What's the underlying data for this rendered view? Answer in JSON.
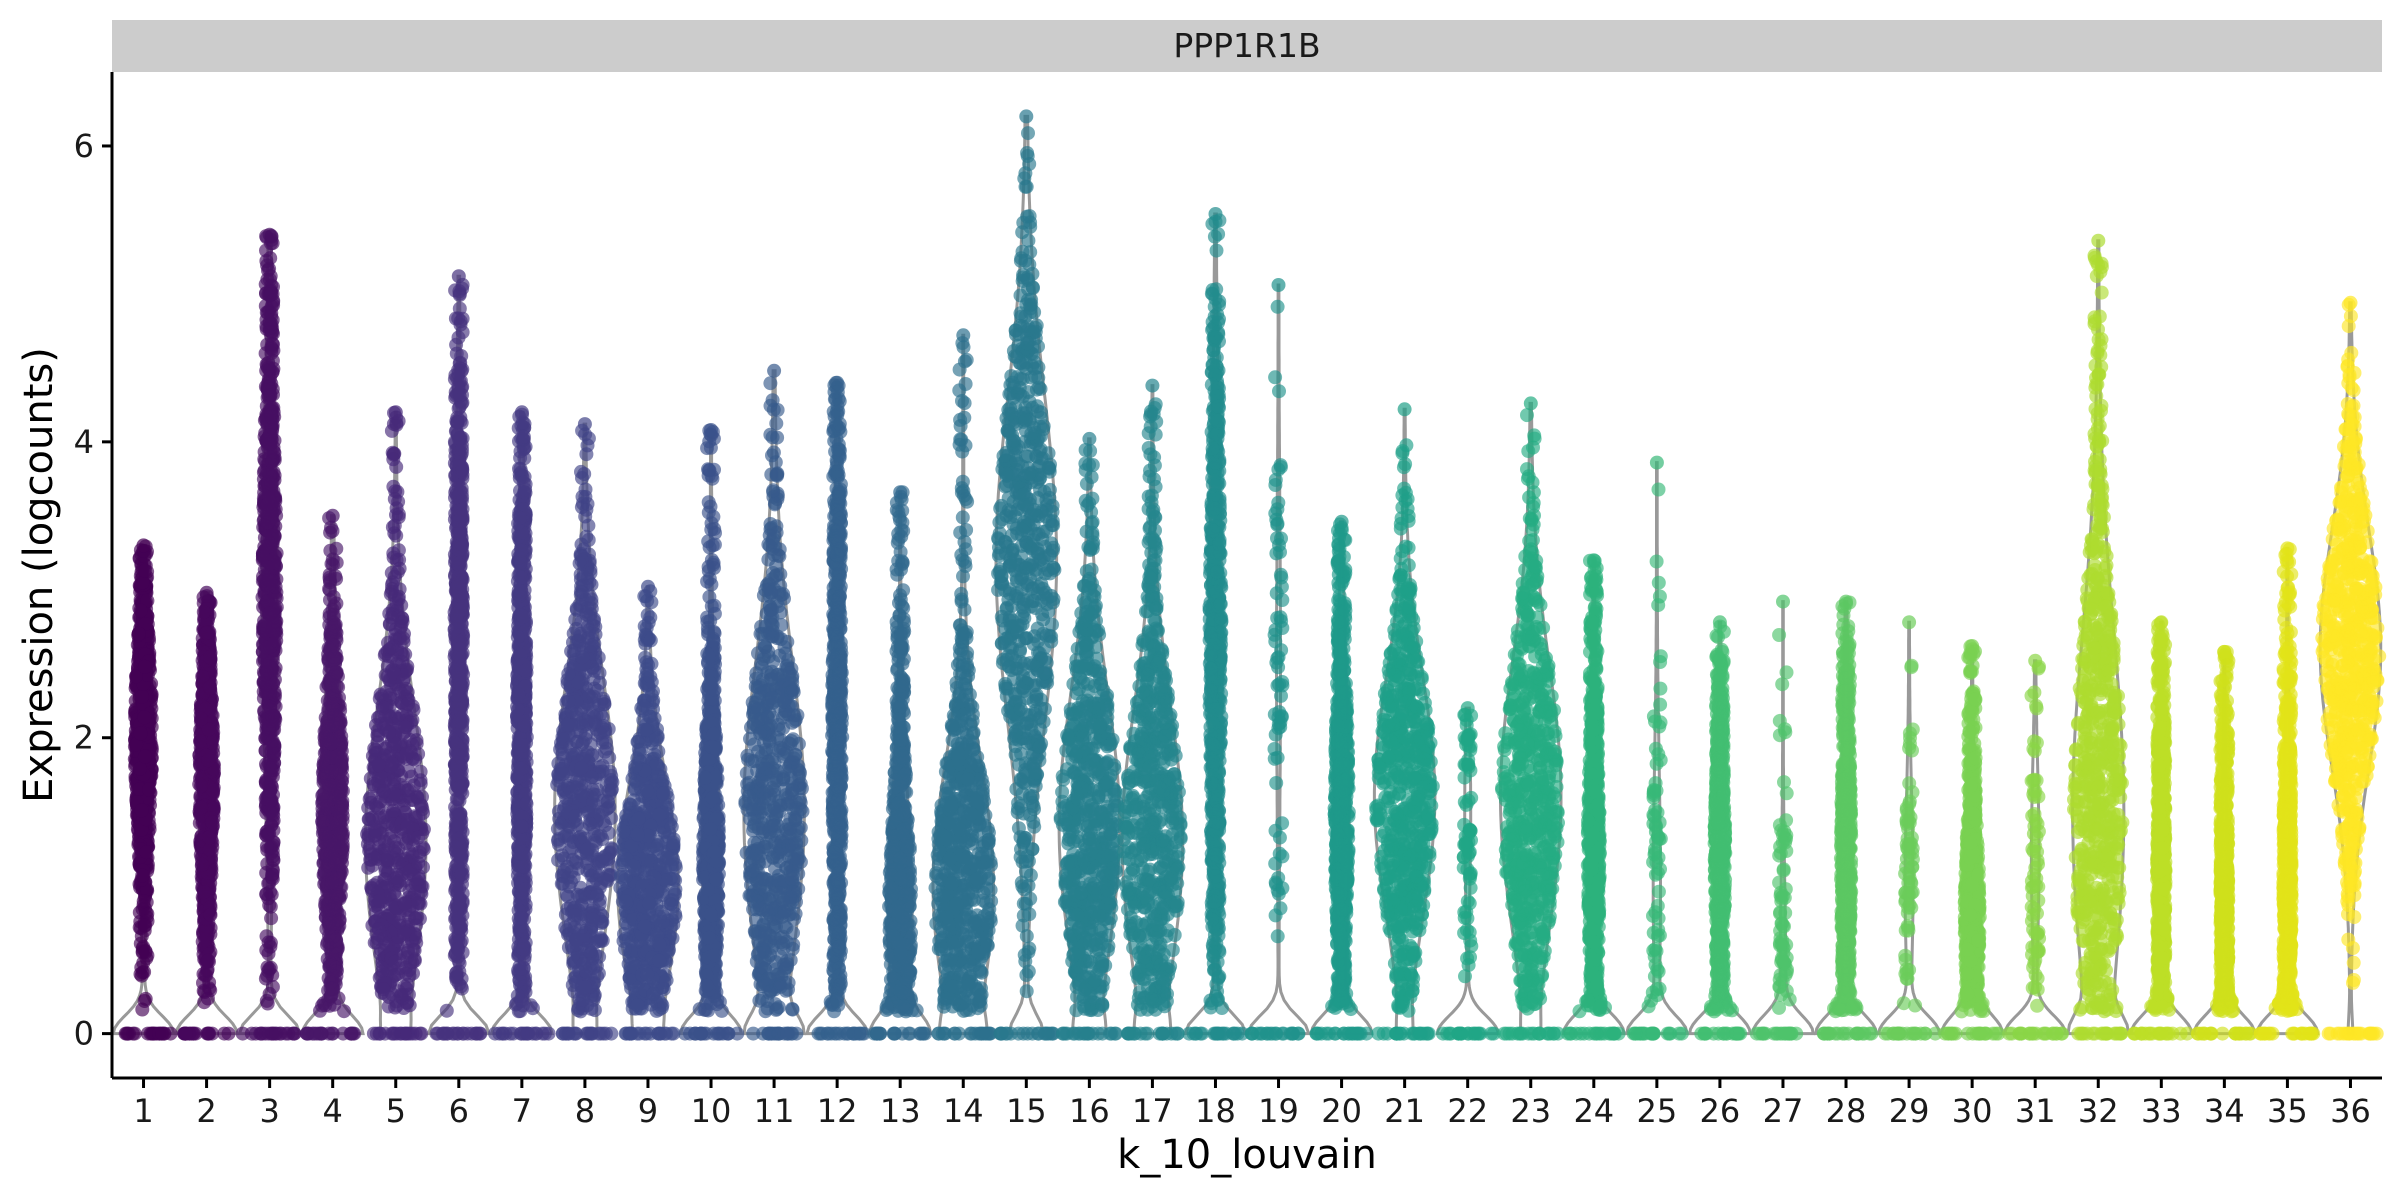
{
  "chart_data": {
    "type": "violin",
    "facet_title": "PPP1R1B",
    "xlabel": "k_10_louvain",
    "ylabel": "Expression (logcounts)",
    "ylim": [
      -0.3,
      6.5
    ],
    "yticks": [
      0,
      2,
      4,
      6
    ],
    "categories": [
      "1",
      "2",
      "3",
      "4",
      "5",
      "6",
      "7",
      "8",
      "9",
      "10",
      "11",
      "12",
      "13",
      "14",
      "15",
      "16",
      "17",
      "18",
      "19",
      "20",
      "21",
      "22",
      "23",
      "24",
      "25",
      "26",
      "27",
      "28",
      "29",
      "30",
      "31",
      "32",
      "33",
      "34",
      "35",
      "36"
    ],
    "series": [
      {
        "category": "1",
        "color": "#440154",
        "max": 3.3,
        "zero_weight": 0.6,
        "mode": 2.0,
        "spread": 0.7,
        "body_width": 0.18,
        "dense": true
      },
      {
        "category": "2",
        "color": "#46085c",
        "max": 2.98,
        "zero_weight": 0.6,
        "mode": 1.7,
        "spread": 0.7,
        "body_width": 0.15,
        "dense": true
      },
      {
        "category": "3",
        "color": "#471063",
        "max": 5.4,
        "zero_weight": 0.5,
        "mode": 3.0,
        "spread": 1.2,
        "body_width": 0.12,
        "dense": true
      },
      {
        "category": "4",
        "color": "#481769",
        "max": 3.5,
        "zero_weight": 0.4,
        "mode": 1.5,
        "spread": 0.8,
        "body_width": 0.15,
        "dense": true
      },
      {
        "category": "5",
        "color": "#472a7a",
        "max": 4.2,
        "zero_weight": 0.1,
        "mode": 1.3,
        "spread": 0.9,
        "body_width": 0.8,
        "dense": true
      },
      {
        "category": "6",
        "color": "#46327e",
        "max": 5.12,
        "zero_weight": 0.7,
        "mode": 2.5,
        "spread": 1.2,
        "body_width": 0.1,
        "dense": true
      },
      {
        "category": "7",
        "color": "#443a83",
        "max": 4.2,
        "zero_weight": 0.6,
        "mode": 2.0,
        "spread": 1.2,
        "body_width": 0.1,
        "dense": true
      },
      {
        "category": "8",
        "color": "#414487",
        "max": 4.12,
        "zero_weight": 0.1,
        "mode": 1.5,
        "spread": 0.9,
        "body_width": 0.8,
        "dense": true
      },
      {
        "category": "9",
        "color": "#3e4c8a",
        "max": 3.02,
        "zero_weight": 0.1,
        "mode": 1.0,
        "spread": 0.7,
        "body_width": 0.8,
        "dense": true
      },
      {
        "category": "10",
        "color": "#3b528b",
        "max": 4.08,
        "zero_weight": 0.5,
        "mode": 1.2,
        "spread": 0.8,
        "body_width": 0.15,
        "dense": true
      },
      {
        "category": "11",
        "color": "#375a8c",
        "max": 4.48,
        "zero_weight": 0.3,
        "mode": 1.5,
        "spread": 1.0,
        "body_width": 0.45,
        "dense": true
      },
      {
        "category": "12",
        "color": "#34618d",
        "max": 4.4,
        "zero_weight": 0.7,
        "mode": 2.0,
        "spread": 1.2,
        "body_width": 0.12,
        "dense": true
      },
      {
        "category": "13",
        "color": "#31688e",
        "max": 3.66,
        "zero_weight": 0.5,
        "mode": 0.8,
        "spread": 0.8,
        "body_width": 0.25,
        "dense": true
      },
      {
        "category": "14",
        "color": "#2d708e",
        "max": 4.72,
        "zero_weight": 0.2,
        "mode": 1.0,
        "spread": 0.8,
        "body_width": 0.65,
        "dense": true
      },
      {
        "category": "15",
        "color": "#2a788e",
        "max": 6.2,
        "zero_weight": 0.3,
        "mode": 3.2,
        "spread": 1.1,
        "body_width": 0.55,
        "dense": true
      },
      {
        "category": "16",
        "color": "#277f8e",
        "max": 4.02,
        "zero_weight": 0.2,
        "mode": 1.4,
        "spread": 0.9,
        "body_width": 0.85,
        "dense": true
      },
      {
        "category": "17",
        "color": "#25858e",
        "max": 4.38,
        "zero_weight": 0.2,
        "mode": 1.3,
        "spread": 0.9,
        "body_width": 0.85,
        "dense": true
      },
      {
        "category": "18",
        "color": "#228c8d",
        "max": 5.54,
        "zero_weight": 0.7,
        "mode": 2.5,
        "spread": 1.3,
        "body_width": 0.15,
        "dense": true
      },
      {
        "category": "19",
        "color": "#20928c",
        "max": 5.06,
        "zero_weight": 0.9,
        "mode": 2.5,
        "spread": 1.0,
        "body_width": 0.05,
        "dense": false
      },
      {
        "category": "20",
        "color": "#1f998a",
        "max": 3.46,
        "zero_weight": 0.7,
        "mode": 1.5,
        "spread": 0.9,
        "body_width": 0.18,
        "dense": true
      },
      {
        "category": "21",
        "color": "#1fa088",
        "max": 4.22,
        "zero_weight": 0.1,
        "mode": 1.6,
        "spread": 0.8,
        "body_width": 0.8,
        "dense": true
      },
      {
        "category": "22",
        "color": "#21a685",
        "max": 2.2,
        "zero_weight": 0.9,
        "mode": 1.5,
        "spread": 0.6,
        "body_width": 0.08,
        "dense": false
      },
      {
        "category": "23",
        "color": "#25ac82",
        "max": 4.26,
        "zero_weight": 0.1,
        "mode": 1.6,
        "spread": 0.9,
        "body_width": 0.9,
        "dense": true
      },
      {
        "category": "24",
        "color": "#2db27d",
        "max": 3.2,
        "zero_weight": 0.7,
        "mode": 1.2,
        "spread": 0.8,
        "body_width": 0.15,
        "dense": true
      },
      {
        "category": "25",
        "color": "#37b878",
        "max": 3.86,
        "zero_weight": 0.85,
        "mode": 1.0,
        "spread": 0.8,
        "body_width": 0.1,
        "dense": false
      },
      {
        "category": "26",
        "color": "#42be71",
        "max": 2.78,
        "zero_weight": 0.8,
        "mode": 1.2,
        "spread": 0.7,
        "body_width": 0.15,
        "dense": true
      },
      {
        "category": "27",
        "color": "#4ec36b",
        "max": 2.92,
        "zero_weight": 0.9,
        "mode": 0.4,
        "spread": 0.6,
        "body_width": 0.08,
        "dense": false
      },
      {
        "category": "28",
        "color": "#5cc863",
        "max": 2.92,
        "zero_weight": 0.8,
        "mode": 1.2,
        "spread": 0.8,
        "body_width": 0.15,
        "dense": true
      },
      {
        "category": "29",
        "color": "#6ccd5a",
        "max": 2.78,
        "zero_weight": 0.8,
        "mode": 1.0,
        "spread": 0.6,
        "body_width": 0.1,
        "dense": false
      },
      {
        "category": "30",
        "color": "#7ad151",
        "max": 2.62,
        "zero_weight": 0.7,
        "mode": 0.8,
        "spread": 0.6,
        "body_width": 0.2,
        "dense": true
      },
      {
        "category": "31",
        "color": "#8bd646",
        "max": 2.52,
        "zero_weight": 0.85,
        "mode": 1.2,
        "spread": 0.6,
        "body_width": 0.1,
        "dense": false
      },
      {
        "category": "32",
        "color": "#addc30",
        "max": 5.36,
        "zero_weight": 0.4,
        "mode": 1.5,
        "spread": 1.2,
        "body_width": 0.55,
        "dense": true
      },
      {
        "category": "33",
        "color": "#bddf26",
        "max": 2.78,
        "zero_weight": 0.8,
        "mode": 1.0,
        "spread": 0.8,
        "body_width": 0.12,
        "dense": true
      },
      {
        "category": "34",
        "color": "#d0e11c",
        "max": 2.58,
        "zero_weight": 0.85,
        "mode": 0.8,
        "spread": 0.6,
        "body_width": 0.12,
        "dense": true
      },
      {
        "category": "35",
        "color": "#e2e418",
        "max": 3.28,
        "zero_weight": 0.8,
        "mode": 1.0,
        "spread": 0.8,
        "body_width": 0.12,
        "dense": true
      },
      {
        "category": "36",
        "color": "#fde725",
        "max": 4.94,
        "zero_weight": 0.05,
        "mode": 2.6,
        "spread": 0.8,
        "body_width": 0.85,
        "dense": true
      }
    ]
  }
}
